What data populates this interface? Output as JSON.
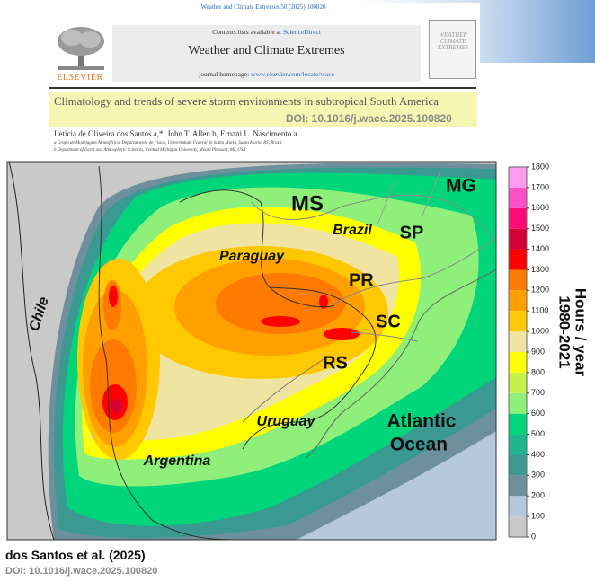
{
  "header": {
    "journal_ref": "Weather and Climate Extremes 50 (2025) 100820",
    "contents_prefix": "Contents lists available at ",
    "sciencedirect": "ScienceDirect",
    "journal_name": "Weather and Climate Extremes",
    "homepage_prefix": "journal homepage: ",
    "homepage_url": "www.elsevier.com/locate/wace",
    "publisher": "ELSEVIER",
    "cover_title": "WEATHER CLIMATE EXTREMES"
  },
  "paper": {
    "title": "Climatology and trends of severe storm environments in subtropical South America",
    "doi_overlay": "DOI:  10.1016/j.wace.2025.100820",
    "authors": "Letícia de Oliveira dos Santos a,*, John T. Allen b, Ernani L. Nascimento a",
    "affiliations": [
      "a Grupo de Modelagem Atmosférica, Departamento de Física, Universidade Federal de Santa Maria, Santa Maria, RS, Brazil",
      "b Department of Earth and Atmospheric Sciences, Central Michigan University, Mount Pleasant, MI, USA"
    ]
  },
  "map": {
    "labels": [
      "MS",
      "MG",
      "Brazil",
      "SP",
      "Paraguay",
      "PR",
      "SC",
      "RS",
      "Chile",
      "Uruguay",
      "Atlantic",
      "Ocean",
      "Argentina"
    ],
    "colorbar": {
      "title": [
        "Hours / year",
        "1980-2021"
      ],
      "ticks": [
        0,
        100,
        200,
        300,
        400,
        500,
        600,
        700,
        800,
        900,
        1000,
        1100,
        1200,
        1300,
        1400,
        1500,
        1600,
        1700,
        1800
      ],
      "colors": [
        "#c9c9c9",
        "#b6c8de",
        "#6e8f9c",
        "#3a9a92",
        "#1fb58f",
        "#00d57a",
        "#8ef07a",
        "#c8f04a",
        "#ffff00",
        "#efe4a2",
        "#ffc800",
        "#ffa000",
        "#ff7a00",
        "#ff0000",
        "#d20034",
        "#ff0a78",
        "#ff50c8",
        "#ff9af0"
      ]
    }
  },
  "footer": {
    "citation": "dos Santos et al. (2025)",
    "doi": "DOI:  10.1016/j.wace.2025.100820"
  }
}
